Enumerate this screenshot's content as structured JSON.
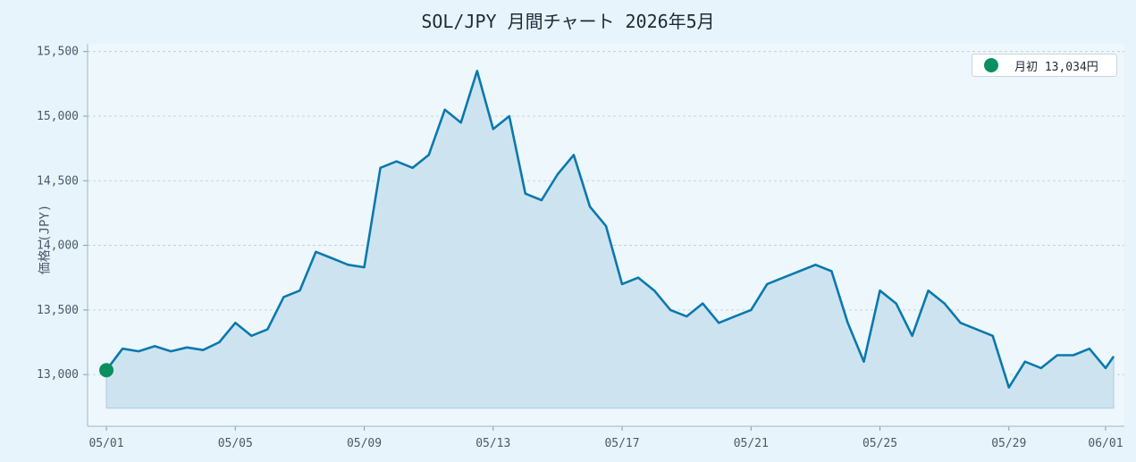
{
  "chart_data": {
    "type": "area",
    "title": "SOL/JPY 月間チャート 2026年5月",
    "ylabel": "価格 (JPY)",
    "xlabel": "",
    "ylim": [
      12600,
      15560
    ],
    "xlim": [
      "2026-04-30T10:00",
      "2026-06-01T14:00"
    ],
    "grid": true,
    "legend_position": "top-right",
    "x_ticks": [
      "05/01",
      "05/05",
      "05/09",
      "05/13",
      "05/17",
      "05/21",
      "05/25",
      "05/29",
      "06/01"
    ],
    "x_tick_dates": [
      "2026-05-01",
      "2026-05-05",
      "2026-05-09",
      "2026-05-13",
      "2026-05-17",
      "2026-05-21",
      "2026-05-25",
      "2026-05-29",
      "2026-06-01"
    ],
    "y_ticks": [
      "13,000",
      "13,500",
      "14,000",
      "14,500",
      "15,000",
      "15,500"
    ],
    "y_tick_values": [
      13000,
      13500,
      14000,
      14500,
      15000,
      15500
    ],
    "colors": {
      "line": "#0a79ad",
      "fill": "#cde4f0",
      "marker": "#0a9060"
    },
    "series": [
      {
        "x": [
          "2026-05-01T00:00",
          "2026-05-01T12:00",
          "2026-05-02T00:00",
          "2026-05-02T12:00",
          "2026-05-03T00:00",
          "2026-05-03T12:00",
          "2026-05-04T00:00",
          "2026-05-04T12:00",
          "2026-05-05T00:00",
          "2026-05-05T12:00",
          "2026-05-06T00:00",
          "2026-05-06T12:00",
          "2026-05-07T00:00",
          "2026-05-07T12:00",
          "2026-05-08T00:00",
          "2026-05-08T12:00",
          "2026-05-09T00:00",
          "2026-05-09T12:00",
          "2026-05-10T00:00",
          "2026-05-10T12:00",
          "2026-05-11T00:00",
          "2026-05-11T12:00",
          "2026-05-12T00:00",
          "2026-05-12T12:00",
          "2026-05-13T00:00",
          "2026-05-13T12:00",
          "2026-05-14T00:00",
          "2026-05-14T12:00",
          "2026-05-15T00:00",
          "2026-05-15T12:00",
          "2026-05-16T00:00",
          "2026-05-16T12:00",
          "2026-05-17T00:00",
          "2026-05-17T12:00",
          "2026-05-18T00:00",
          "2026-05-18T12:00",
          "2026-05-19T00:00",
          "2026-05-19T12:00",
          "2026-05-20T00:00",
          "2026-05-20T12:00",
          "2026-05-21T00:00",
          "2026-05-21T12:00",
          "2026-05-22T00:00",
          "2026-05-22T12:00",
          "2026-05-23T00:00",
          "2026-05-23T12:00",
          "2026-05-24T00:00",
          "2026-05-24T12:00",
          "2026-05-25T00:00",
          "2026-05-25T12:00",
          "2026-05-26T00:00",
          "2026-05-26T12:00",
          "2026-05-27T00:00",
          "2026-05-27T12:00",
          "2026-05-28T00:00",
          "2026-05-28T12:00",
          "2026-05-29T00:00",
          "2026-05-29T12:00",
          "2026-05-30T00:00",
          "2026-05-30T12:00",
          "2026-05-31T00:00",
          "2026-05-31T12:00",
          "2026-06-01T00:00",
          "2026-06-01T06:00"
        ],
        "y": [
          13034,
          13200,
          13180,
          13220,
          13180,
          13210,
          13190,
          13250,
          13400,
          13300,
          13350,
          13600,
          13650,
          13950,
          13900,
          13850,
          13830,
          14600,
          14650,
          14600,
          14700,
          15050,
          14950,
          15350,
          14900,
          15000,
          14400,
          14350,
          14550,
          14700,
          14300,
          14150,
          13700,
          13750,
          13650,
          13500,
          13450,
          13550,
          13400,
          13450,
          13500,
          13700,
          13750,
          13800,
          13850,
          13800,
          13400,
          13100,
          13650,
          13550,
          13300,
          13650,
          13550,
          13400,
          13350,
          13300,
          12900,
          13100,
          13050,
          13150,
          13150,
          13200,
          13050,
          13140
        ]
      }
    ],
    "markers": [
      {
        "x": "2026-05-01T00:00",
        "y": 13034
      }
    ]
  },
  "legend": {
    "label": "月初 13,034円"
  }
}
